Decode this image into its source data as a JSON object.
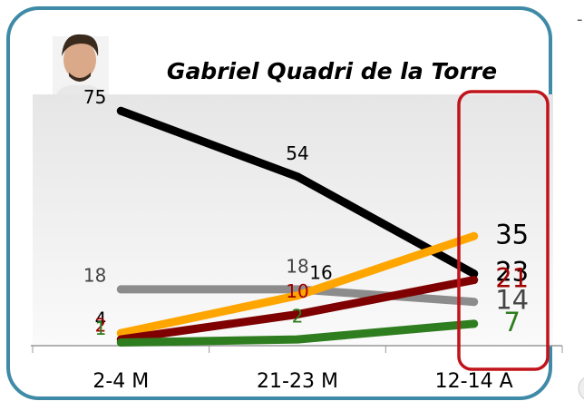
{
  "chart_data": {
    "type": "line",
    "title": "Gabriel Quadri de la Torre",
    "categories": [
      "2-4 M",
      "21-23 M",
      "12-14 A"
    ],
    "ylim": [
      0,
      80
    ],
    "series": [
      {
        "color": "#000000",
        "label_color": "#000000",
        "values": [
          75,
          54,
          23
        ]
      },
      {
        "color": "#8c8c8c",
        "label_color": "#444444",
        "values": [
          18,
          18,
          14
        ]
      },
      {
        "color": "#ffa500",
        "label_color": "#000000",
        "values": [
          4,
          16,
          35
        ]
      },
      {
        "color": "#7f0000",
        "label_color": "#a00000",
        "values": [
          2,
          10,
          21
        ]
      },
      {
        "color": "#2e7d1e",
        "label_color": "#2e7d1e",
        "values": [
          1,
          2,
          7
        ]
      }
    ],
    "highlight_color": "#c0141c",
    "frame_color": "#3f8aa6"
  }
}
